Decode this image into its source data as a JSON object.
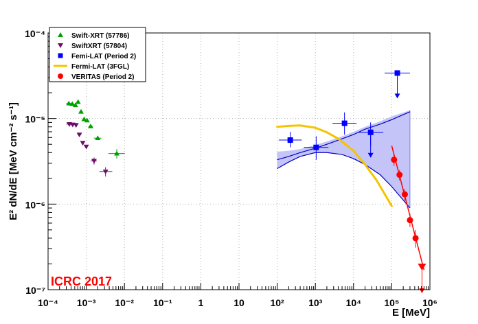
{
  "chart_data": {
    "type": "scatter",
    "xlabel": "E [MeV]",
    "ylabel": "E² dN/dE [MeV cm⁻² s⁻¹]",
    "xscale": "log",
    "yscale": "log",
    "xlim": [
      0.0001,
      1000000
    ],
    "ylim": [
      1e-07,
      0.0001
    ],
    "grid": true,
    "x_tick_labels": [
      "10⁻⁴",
      "10⁻³",
      "10⁻²",
      "10⁻¹",
      "1",
      "10",
      "10²",
      "10³",
      "10⁴",
      "10⁵",
      "10⁶"
    ],
    "y_tick_labels": [
      "10⁻⁷",
      "10⁻⁶",
      "10⁻⁵",
      "10⁻⁴"
    ],
    "legend_position": "top-left",
    "annotation": "ICRC 2017",
    "colors": {
      "swift_57786": "#00a000",
      "swift_57804": "#6b0f6b",
      "fermi_p2": "#0000ff",
      "fermi_band": "#c4c4f8",
      "fermi_3fgl": "#f5c400",
      "veritas": "#ff0000"
    },
    "series": [
      {
        "name": "Swift-XRT (57786)",
        "marker": "triangle-up",
        "points": [
          {
            "x": 0.00035,
            "y": 1.5e-05,
            "xlo": 0.0003,
            "xhi": 0.00042
          },
          {
            "x": 0.00043,
            "y": 1.48e-05,
            "xlo": 0.00039,
            "xhi": 0.00048
          },
          {
            "x": 0.00052,
            "y": 1.43e-05,
            "xlo": 0.00048,
            "xhi": 0.00057
          },
          {
            "x": 0.00061,
            "y": 1.56e-05,
            "xlo": 0.00057,
            "xhi": 0.00066
          },
          {
            "x": 0.00073,
            "y": 1.2e-05,
            "xlo": 0.00066,
            "xhi": 0.00081
          },
          {
            "x": 0.00088,
            "y": 9.8e-06,
            "xlo": 0.00081,
            "xhi": 0.00096
          },
          {
            "x": 0.00105,
            "y": 9.5e-06,
            "xlo": 0.00096,
            "xhi": 0.00115
          },
          {
            "x": 0.0013,
            "y": 8.1e-06,
            "xlo": 0.00115,
            "xhi": 0.00148
          },
          {
            "x": 0.002,
            "y": 5.9e-06,
            "xlo": 0.00158,
            "xhi": 0.0025
          },
          {
            "x": 0.0063,
            "y": 3.9e-06,
            "xlo": 0.0038,
            "xhi": 0.0102,
            "ylo": 3.4e-06,
            "yhi": 4.4e-06
          }
        ]
      },
      {
        "name": "SwiftXRT (57804)",
        "marker": "triangle-down",
        "points": [
          {
            "x": 0.00036,
            "y": 8.6e-06,
            "xlo": 0.0003,
            "xhi": 0.00042
          },
          {
            "x": 0.00044,
            "y": 8.5e-06,
            "xlo": 0.00039,
            "xhi": 0.00049
          },
          {
            "x": 0.00054,
            "y": 8.4e-06,
            "xlo": 0.00049,
            "xhi": 0.00059
          },
          {
            "x": 0.00066,
            "y": 6.5e-06,
            "xlo": 0.00059,
            "xhi": 0.00074
          },
          {
            "x": 0.00081,
            "y": 5.2e-06,
            "xlo": 0.00074,
            "xhi": 0.00088
          },
          {
            "x": 0.001,
            "y": 4.7e-06,
            "xlo": 0.00092,
            "xhi": 0.00108
          },
          {
            "x": 0.0016,
            "y": 3.2e-06,
            "xlo": 0.0013,
            "xhi": 0.0019,
            "ylo": 2.9e-06,
            "yhi": 3.5e-06
          },
          {
            "x": 0.0032,
            "y": 2.4e-06,
            "xlo": 0.0022,
            "xhi": 0.0048,
            "ylo": 2.1e-06,
            "yhi": 2.7e-06
          }
        ]
      },
      {
        "name": "Femi-LAT (Period 2)",
        "marker": "square",
        "points": [
          {
            "x": 220,
            "y": 5.6e-06,
            "xlo": 110,
            "xhi": 440,
            "ylo": 4.6e-06,
            "yhi": 7e-06
          },
          {
            "x": 1050,
            "y": 4.6e-06,
            "xlo": 500,
            "xhi": 2200,
            "ylo": 3.3e-06,
            "yhi": 6.2e-06
          },
          {
            "x": 5800,
            "y": 8.8e-06,
            "xlo": 2800,
            "xhi": 12000,
            "ylo": 6.5e-06,
            "yhi": 1.18e-05
          },
          {
            "x": 28000,
            "y": 6.9e-06,
            "xlo": 13000,
            "xhi": 60000,
            "ylo": 4.8e-06,
            "yhi": 9e-06,
            "upper_limit": true
          },
          {
            "x": 140000,
            "y": 3.4e-05,
            "xlo": 65000,
            "xhi": 300000,
            "upper_limit": true
          }
        ]
      },
      {
        "name": "Fermi-LAT (3FGL)",
        "type": "line",
        "x": [
          100,
          200,
          400,
          1000,
          2000,
          4000,
          10000,
          20000,
          40000,
          100000
        ],
        "y": [
          8e-06,
          8.2e-06,
          8.3e-06,
          7.8e-06,
          6.9e-06,
          5.8e-06,
          4.2e-06,
          2.9e-06,
          1.9e-06,
          9.5e-07
        ]
      },
      {
        "name": "VERITAS (Period 2)",
        "marker": "circle",
        "points": [
          {
            "x": 115000,
            "y": 3.3e-06,
            "ylo": 2.8e-06,
            "yhi": 3.8e-06
          },
          {
            "x": 160000,
            "y": 2.2e-06,
            "ylo": 1.9e-06,
            "yhi": 2.5e-06
          },
          {
            "x": 220000,
            "y": 1.3e-06,
            "ylo": 1.1e-06,
            "yhi": 1.5e-06
          },
          {
            "x": 300000,
            "y": 6.5e-07,
            "ylo": 5.4e-07,
            "yhi": 7.7e-07
          },
          {
            "x": 420000,
            "y": 4e-07,
            "ylo": 3.1e-07,
            "yhi": 5e-07
          },
          {
            "x": 620000,
            "y": 1.8e-07,
            "upper_limit": true
          }
        ],
        "fit_line": {
          "x": [
            100000,
            700000
          ],
          "y": [
            4.8e-06,
            1.7e-07
          ]
        }
      }
    ],
    "fermi_p2_band": {
      "x": [
        100,
        200,
        400,
        1000,
        2000,
        5000,
        10000,
        20000,
        50000,
        100000,
        300000
      ],
      "upper": [
        4.1e-06,
        4.2e-06,
        4.4e-06,
        4.9e-06,
        5.4e-06,
        6.2e-06,
        7e-06,
        8e-06,
        9.3e-06,
        1.06e-05,
        1.25e-05
      ],
      "lower": [
        2.6e-06,
        3.1e-06,
        3.6e-06,
        4e-06,
        4e-06,
        3.8e-06,
        3.4e-06,
        2.9e-06,
        2.2e-06,
        1.6e-06,
        9e-07
      ]
    },
    "fermi_p2_fit": {
      "x": [
        100,
        200,
        400,
        1000,
        2000,
        5000,
        10000,
        20000,
        50000,
        100000,
        300000
      ],
      "upper": [
        3.3e-06,
        3.6e-06,
        4e-06,
        4.5e-06,
        5e-06,
        5.8e-06,
        6.5e-06,
        7.5e-06,
        8.6e-06,
        9.7e-06,
        1.2e-05
      ],
      "lower": [
        2.6e-06,
        3.1e-06,
        3.6e-06,
        4e-06,
        4e-06,
        3.8e-06,
        3.4e-06,
        2.9e-06,
        2.2e-06,
        1.6e-06,
        9e-07
      ]
    }
  }
}
